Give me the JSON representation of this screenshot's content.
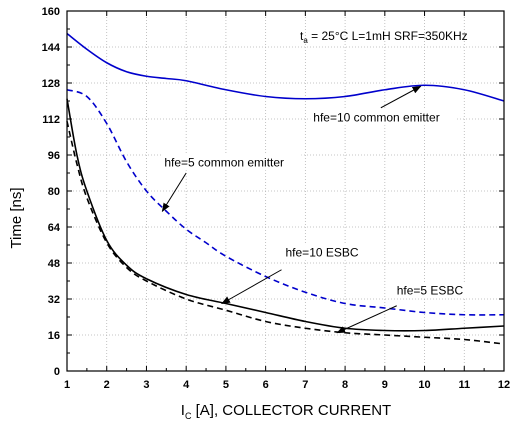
{
  "chart_data": {
    "type": "line",
    "title": "",
    "xlabel": {
      "main": "I",
      "sub": "C",
      "rest": " [A], COLLECTOR CURRENT"
    },
    "ylabel": "Time [ns]",
    "xlim": [
      1,
      12
    ],
    "ylim": [
      0,
      160
    ],
    "xticks": [
      1,
      2,
      3,
      4,
      5,
      6,
      7,
      8,
      9,
      10,
      11,
      12
    ],
    "yticks": [
      0,
      16,
      32,
      48,
      64,
      80,
      96,
      112,
      128,
      144,
      160
    ],
    "grid": true,
    "legend": "none",
    "conditions": {
      "t": "t",
      "t_sub": "a",
      "rest": " = 25°C L=1mH SRF=350KHz"
    },
    "series": [
      {
        "label_text": "hfe=10 common emitter",
        "color": "#0000cc",
        "dash": "solid",
        "x": [
          1,
          1.5,
          2,
          2.5,
          3,
          3.5,
          4,
          5,
          6,
          7,
          8,
          9,
          10,
          11,
          12
        ],
        "y": [
          150,
          143,
          137,
          133,
          131,
          130,
          129,
          125,
          122,
          121,
          122,
          125,
          127,
          125,
          120
        ]
      },
      {
        "label_text": "hfe=5 common emitter",
        "color": "#0000cc",
        "dash": "dashed",
        "x": [
          1,
          1.5,
          2,
          2.5,
          3,
          3.5,
          4,
          4.5,
          5,
          6,
          7,
          8,
          9,
          10,
          11,
          12
        ],
        "y": [
          125,
          122,
          110,
          93,
          80,
          71,
          63,
          57,
          51,
          42,
          35,
          30,
          28,
          26,
          25,
          25
        ]
      },
      {
        "label_text": "hfe=10 ESBC",
        "color": "#000000",
        "dash": "solid",
        "x": [
          1,
          1.25,
          1.5,
          2,
          2.5,
          3,
          4,
          5,
          6,
          7,
          8,
          9,
          10,
          11,
          12
        ],
        "y": [
          121,
          96,
          80,
          58,
          47,
          41,
          34,
          30,
          26,
          22,
          19,
          18,
          18,
          19,
          20
        ]
      },
      {
        "label_text": "hfe=5 ESBC",
        "color": "#000000",
        "dash": "dashed",
        "x": [
          1,
          1.25,
          1.5,
          2,
          2.5,
          3,
          4,
          5,
          6,
          7,
          8,
          9,
          10,
          11,
          12
        ],
        "y": [
          111,
          92,
          77,
          57,
          46,
          40,
          32,
          27,
          22,
          19,
          17,
          16,
          15,
          14,
          12
        ]
      }
    ],
    "annotations": [
      {
        "series": 0,
        "text": "hfe=10 common emitter",
        "text_at": [
          7.2,
          111
        ],
        "arrow_from": [
          8.9,
          117
        ],
        "arrow_to": [
          9.9,
          126.5
        ]
      },
      {
        "series": 1,
        "text": "hfe=5 common emitter",
        "text_at": [
          3.45,
          91
        ],
        "arrow_from": [
          4.0,
          88
        ],
        "arrow_to": [
          3.4,
          71
        ]
      },
      {
        "series": 2,
        "text": "hfe=10 ESBC",
        "text_at": [
          6.5,
          51
        ],
        "arrow_from": [
          6.4,
          45
        ],
        "arrow_to": [
          4.9,
          30
        ]
      },
      {
        "series": 3,
        "text": "hfe=5 ESBC",
        "text_at": [
          9.3,
          34
        ],
        "arrow_from": [
          9.3,
          29
        ],
        "arrow_to": [
          7.8,
          17
        ]
      }
    ]
  }
}
